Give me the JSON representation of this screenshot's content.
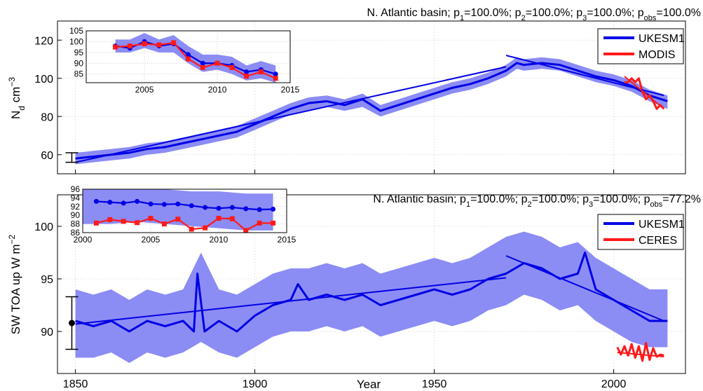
{
  "figure": {
    "xlabel": "Year"
  },
  "colors": {
    "model": "#0000e6",
    "model_band": "#8c8cf5",
    "obs": "#ff1a1a",
    "grid": "#cfcfcf"
  },
  "chart_data": [
    {
      "type": "line",
      "panel": "top",
      "title": "N. Atlantic basin; p1=100.0%; p2=100.0%; p3=100.0%; pobs=100.0%",
      "title_parts": {
        "prefix": "N. Atlantic basin; ",
        "p1": "100.0%",
        "p2": "100.0%",
        "p3": "100.0%",
        "pobs": "100.0%"
      },
      "ylabel": "Nd cm-3",
      "xlim": [
        1845,
        2020
      ],
      "ylim": [
        50,
        130
      ],
      "xticks": [
        1850,
        1900,
        1950,
        2000
      ],
      "yticks": [
        60,
        80,
        100,
        120
      ],
      "legend": {
        "position": "top-right",
        "entries": [
          "UKESM1",
          "MODIS"
        ]
      },
      "series": [
        {
          "name": "UKESM1",
          "kind": "line",
          "x": [
            1850,
            1855,
            1860,
            1865,
            1870,
            1875,
            1880,
            1885,
            1890,
            1895,
            1900,
            1905,
            1910,
            1915,
            1920,
            1925,
            1930,
            1935,
            1940,
            1945,
            1950,
            1955,
            1960,
            1965,
            1970,
            1973,
            1975,
            1980,
            1985,
            1990,
            1995,
            2000,
            2005,
            2010,
            2015
          ],
          "y": [
            58,
            59,
            60,
            61,
            63,
            64,
            66,
            68,
            70,
            72,
            76,
            80,
            84,
            87,
            88,
            86,
            89,
            83,
            86,
            89,
            92,
            95,
            97,
            100,
            104,
            108,
            107,
            108,
            107,
            104,
            101,
            99,
            96,
            91,
            88
          ]
        },
        {
          "name": "UKESM1",
          "kind": "band",
          "x": [
            1850,
            1855,
            1860,
            1865,
            1870,
            1875,
            1880,
            1885,
            1890,
            1895,
            1900,
            1905,
            1910,
            1915,
            1920,
            1925,
            1930,
            1935,
            1940,
            1945,
            1950,
            1955,
            1960,
            1965,
            1970,
            1973,
            1975,
            1980,
            1985,
            1990,
            1995,
            2000,
            2005,
            2010,
            2015
          ],
          "lower": [
            55,
            56,
            57,
            58,
            60,
            61,
            63,
            65,
            67,
            69,
            73,
            77,
            81,
            83,
            85,
            83,
            85,
            80,
            83,
            86,
            89,
            92,
            94,
            97,
            101,
            105,
            104,
            105,
            104,
            101,
            98,
            96,
            93,
            88,
            84
          ],
          "upper": [
            61,
            62,
            63,
            64,
            66,
            67,
            69,
            71,
            73,
            75,
            79,
            83,
            87,
            90,
            91,
            89,
            92,
            86,
            89,
            92,
            95,
            98,
            100,
            103,
            107,
            111,
            110,
            111,
            110,
            107,
            104,
            102,
            99,
            94,
            91
          ]
        },
        {
          "name": "UKESM1",
          "kind": "trend",
          "x": [
            1850,
            1970
          ],
          "y": [
            56,
            106
          ]
        },
        {
          "name": "UKESM1",
          "kind": "trend",
          "x": [
            1970,
            2014
          ],
          "y": [
            112,
            91
          ]
        },
        {
          "name": "MODIS",
          "kind": "line",
          "x": [
            2003,
            2004,
            2005,
            2006,
            2007,
            2008,
            2009,
            2010,
            2011,
            2012,
            2013,
            2014
          ],
          "y": [
            98,
            98,
            100,
            98,
            100,
            93,
            89,
            91,
            88,
            84,
            86,
            84
          ]
        },
        {
          "name": "MODIS",
          "kind": "trend",
          "x": [
            2003,
            2014
          ],
          "y": [
            101,
            84
          ]
        }
      ],
      "error_bar": {
        "x": 1849,
        "center": 58,
        "low": 56,
        "high": 61,
        "marker": false
      },
      "inset": {
        "xlim": [
          2001,
          2015
        ],
        "ylim": [
          81,
          105
        ],
        "xticks": [
          2005,
          2010,
          2015
        ],
        "yticks": [
          85,
          90,
          95,
          100,
          105
        ],
        "series": [
          {
            "name": "UKESM1",
            "kind": "band",
            "x": [
              2003,
              2004,
              2005,
              2006,
              2007,
              2008,
              2009,
              2010,
              2011,
              2012,
              2013,
              2014
            ],
            "lower": [
              95,
              95,
              97,
              95,
              95,
              90,
              86,
              87,
              85,
              82,
              83,
              81
            ],
            "upper": [
              101,
              101,
              104,
              101,
              103,
              98,
              94,
              94,
              93,
              89,
              91,
              89
            ]
          },
          {
            "name": "UKESM1",
            "kind": "line",
            "x": [
              2003,
              2004,
              2005,
              2006,
              2007,
              2008,
              2009,
              2010,
              2011,
              2012,
              2013,
              2014
            ],
            "y": [
              98,
              97,
              100,
              98,
              99,
              94,
              90,
              90,
              89,
              86,
              87,
              85
            ]
          },
          {
            "name": "MODIS",
            "kind": "line",
            "x": [
              2003,
              2004,
              2005,
              2006,
              2007,
              2008,
              2009,
              2010,
              2011,
              2012,
              2013,
              2014
            ],
            "y": [
              97.5,
              98,
              99,
              98.5,
              99.5,
              92,
              88,
              90,
              88,
              84,
              86,
              83
            ]
          }
        ]
      }
    },
    {
      "type": "line",
      "panel": "bottom",
      "title": "N. Atlantic basin; p1=100.0%; p2=100.0%; p3=100.0%; pobs=77.2%",
      "title_parts": {
        "prefix": "N. Atlantic basin; ",
        "p1": "100.0%",
        "p2": "100.0%",
        "p3": "100.0%",
        "pobs": "77.2%"
      },
      "ylabel": "SW TOA up W m-2",
      "xlim": [
        1845,
        2020
      ],
      "ylim": [
        86,
        103
      ],
      "xticks": [
        1850,
        1900,
        1950,
        2000
      ],
      "yticks": [
        90,
        95,
        100
      ],
      "legend": {
        "position": "top-right",
        "entries": [
          "UKESM1",
          "CERES"
        ]
      },
      "series": [
        {
          "name": "UKESM1",
          "kind": "line",
          "x": [
            1850,
            1855,
            1860,
            1865,
            1870,
            1875,
            1880,
            1883,
            1884,
            1886,
            1890,
            1895,
            1900,
            1905,
            1910,
            1912,
            1915,
            1920,
            1925,
            1930,
            1935,
            1940,
            1945,
            1950,
            1955,
            1960,
            1965,
            1970,
            1975,
            1980,
            1985,
            1990,
            1992,
            1995,
            2000,
            2005,
            2010,
            2015
          ],
          "y": [
            91,
            90.5,
            91,
            90,
            91,
            90.5,
            91,
            90,
            95.5,
            90,
            91,
            90,
            91.5,
            92.5,
            93,
            94.5,
            93,
            93.5,
            93,
            93.5,
            92.5,
            93,
            93.5,
            94,
            93.5,
            94,
            95,
            95.5,
            96.5,
            96,
            95,
            95.5,
            97.5,
            94,
            93,
            92,
            91,
            91
          ]
        },
        {
          "name": "UKESM1",
          "kind": "band",
          "x": [
            1850,
            1855,
            1860,
            1865,
            1870,
            1875,
            1880,
            1885,
            1890,
            1895,
            1900,
            1905,
            1910,
            1915,
            1920,
            1925,
            1930,
            1935,
            1940,
            1945,
            1950,
            1955,
            1960,
            1965,
            1970,
            1975,
            1980,
            1985,
            1990,
            1995,
            2000,
            2005,
            2010,
            2015
          ],
          "lower": [
            87.5,
            87.5,
            88,
            87,
            88,
            87.5,
            88,
            89,
            88,
            87.5,
            88.5,
            89.5,
            90,
            90,
            90.5,
            90,
            90.5,
            89.5,
            90,
            90.5,
            91,
            90.5,
            91,
            92,
            92.5,
            93.5,
            93,
            92,
            92.5,
            91,
            90,
            89,
            88.5,
            88.5
          ],
          "upper": [
            94,
            93.5,
            94,
            93,
            94,
            93.5,
            94,
            97.5,
            94,
            93.5,
            94.5,
            95.5,
            96,
            96,
            96.5,
            96,
            96.5,
            95.5,
            96,
            96.5,
            97,
            96.5,
            97,
            98,
            99,
            99.5,
            99,
            98,
            98.5,
            97,
            96,
            95,
            94,
            94
          ]
        },
        {
          "name": "UKESM1",
          "kind": "trend",
          "x": [
            1850,
            1970
          ],
          "y": [
            90.7,
            95.1
          ]
        },
        {
          "name": "UKESM1",
          "kind": "trend",
          "x": [
            1970,
            2014
          ],
          "y": [
            97.2,
            91
          ]
        },
        {
          "name": "CERES",
          "kind": "line",
          "x": [
            2001,
            2002,
            2003,
            2004,
            2005,
            2006,
            2007,
            2008,
            2009,
            2010,
            2011,
            2012,
            2013,
            2014
          ],
          "y": [
            88.5,
            87.8,
            88.6,
            87.7,
            88.8,
            87.5,
            88.6,
            87.2,
            88.9,
            87.3,
            88.4,
            87.6,
            87.8,
            87.7
          ]
        },
        {
          "name": "CERES",
          "kind": "trend",
          "x": [
            2001,
            2014
          ],
          "y": [
            88,
            87.6
          ]
        }
      ],
      "error_bar": {
        "x": 1849,
        "center": 90.8,
        "low": 88.3,
        "high": 93.3,
        "marker": true
      },
      "inset": {
        "xlim": [
          2000,
          2015
        ],
        "ylim": [
          86,
          96
        ],
        "xticks": [
          2000,
          2005,
          2010,
          2015
        ],
        "yticks": [
          86,
          88,
          90,
          92,
          94,
          96
        ],
        "series": [
          {
            "name": "UKESM1",
            "kind": "band",
            "x": [
              2000,
              2002,
              2004,
              2006,
              2008,
              2010,
              2012,
              2014
            ],
            "lower": [
              88,
              88,
              88.5,
              88,
              87.5,
              87,
              86.5,
              86.5
            ],
            "upper": [
              96,
              96,
              96,
              96,
              95.5,
              95.5,
              95,
              95
            ]
          },
          {
            "name": "UKESM1",
            "kind": "line",
            "x": [
              2001,
              2002,
              2003,
              2004,
              2005,
              2006,
              2007,
              2008,
              2009,
              2010,
              2011,
              2012,
              2013,
              2014
            ],
            "y": [
              93.2,
              93,
              92.8,
              93.2,
              92.6,
              92.5,
              92.6,
              92.2,
              91.8,
              91.6,
              91.8,
              91.5,
              91.3,
              91.4
            ]
          },
          {
            "name": "CERES",
            "kind": "line",
            "x": [
              2001,
              2002,
              2003,
              2004,
              2005,
              2006,
              2007,
              2008,
              2009,
              2010,
              2011,
              2012,
              2013,
              2014
            ],
            "y": [
              88.2,
              89,
              88.6,
              88.3,
              89.3,
              88,
              89.1,
              86.8,
              87.1,
              89.3,
              89.2,
              86.5,
              88.2,
              88.2
            ]
          }
        ]
      }
    }
  ]
}
